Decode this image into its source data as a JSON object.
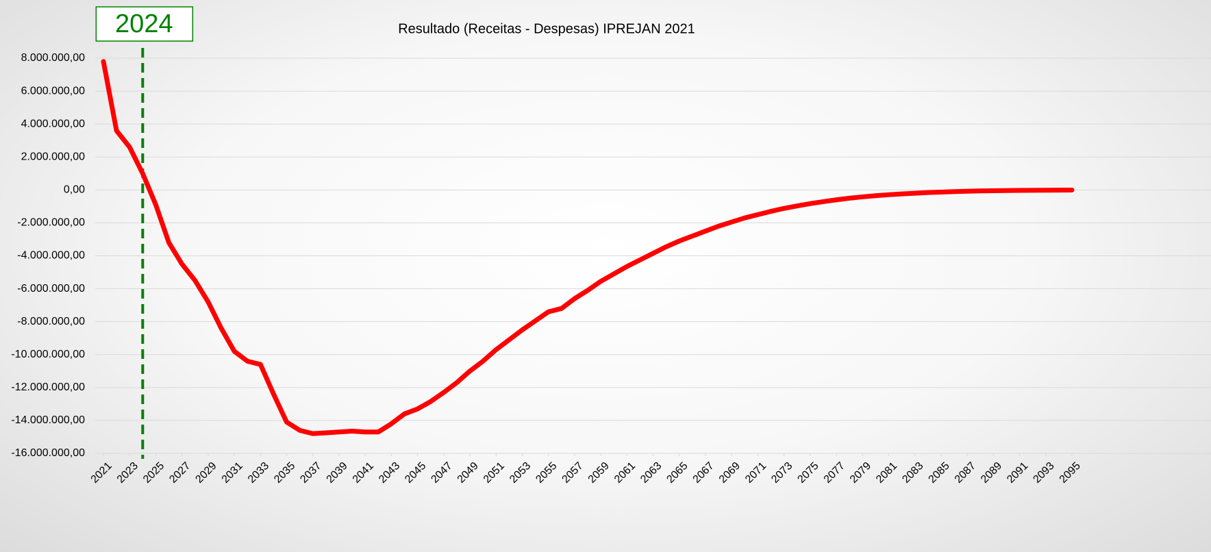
{
  "chart_data": {
    "type": "line",
    "title": "Resultado (Receitas - Despesas) IPREJAN 2021",
    "x": [
      2021,
      2022,
      2023,
      2024,
      2025,
      2026,
      2027,
      2028,
      2029,
      2030,
      2031,
      2032,
      2033,
      2034,
      2035,
      2036,
      2037,
      2038,
      2039,
      2040,
      2041,
      2042,
      2043,
      2044,
      2045,
      2046,
      2047,
      2048,
      2049,
      2050,
      2051,
      2052,
      2053,
      2054,
      2055,
      2056,
      2057,
      2058,
      2059,
      2060,
      2061,
      2062,
      2063,
      2064,
      2065,
      2066,
      2067,
      2068,
      2069,
      2070,
      2071,
      2072,
      2073,
      2074,
      2075,
      2076,
      2077,
      2078,
      2079,
      2080,
      2081,
      2082,
      2083,
      2084,
      2085,
      2086,
      2087,
      2088,
      2089,
      2090,
      2091,
      2092,
      2093,
      2094,
      2095
    ],
    "series": [
      {
        "color": "#ff0000",
        "values": [
          7800000,
          3600000,
          2600000,
          1000000,
          -900000,
          -3200000,
          -4500000,
          -5500000,
          -6800000,
          -8400000,
          -9800000,
          -10400000,
          -10600000,
          -12400000,
          -14100000,
          -14600000,
          -14800000,
          -14750000,
          -14700000,
          -14650000,
          -14700000,
          -14700000,
          -14200000,
          -13600000,
          -13300000,
          -12850000,
          -12300000,
          -11700000,
          -11000000,
          -10400000,
          -9700000,
          -9100000,
          -8500000,
          -7950000,
          -7400000,
          -7200000,
          -6600000,
          -6100000,
          -5550000,
          -5100000,
          -4650000,
          -4250000,
          -3850000,
          -3450000,
          -3100000,
          -2800000,
          -2500000,
          -2200000,
          -1950000,
          -1700000,
          -1500000,
          -1300000,
          -1120000,
          -970000,
          -830000,
          -710000,
          -600000,
          -500000,
          -420000,
          -350000,
          -290000,
          -240000,
          -200000,
          -160000,
          -130000,
          -100000,
          -80000,
          -60000,
          -50000,
          -40000,
          -30000,
          -20000,
          -15000,
          -10000,
          -5000
        ]
      }
    ],
    "xlim": [
      2021,
      2095
    ],
    "xticks": [
      2021,
      2023,
      2025,
      2027,
      2029,
      2031,
      2033,
      2035,
      2037,
      2039,
      2041,
      2043,
      2045,
      2047,
      2049,
      2051,
      2053,
      2055,
      2057,
      2059,
      2061,
      2063,
      2065,
      2067,
      2069,
      2071,
      2073,
      2075,
      2077,
      2079,
      2081,
      2083,
      2085,
      2087,
      2089,
      2091,
      2093,
      2095
    ],
    "ylim": [
      -16000000,
      8000000
    ],
    "yticks": [
      {
        "value": 8000000,
        "label": "8.000.000,00"
      },
      {
        "value": 6000000,
        "label": "6.000.000,00"
      },
      {
        "value": 4000000,
        "label": "4.000.000,00"
      },
      {
        "value": 2000000,
        "label": "2.000.000,00"
      },
      {
        "value": 0,
        "label": "0,00"
      },
      {
        "value": -2000000,
        "label": "-2.000.000,00"
      },
      {
        "value": -4000000,
        "label": "-4.000.000,00"
      },
      {
        "value": -6000000,
        "label": "-6.000.000,00"
      },
      {
        "value": -8000000,
        "label": "-8.000.000,00"
      },
      {
        "value": -10000000,
        "label": "-10.000.000,00"
      },
      {
        "value": -12000000,
        "label": "-12.000.000,00"
      },
      {
        "value": -14000000,
        "label": "-14.000.000,00"
      },
      {
        "value": -16000000,
        "label": "-16.000.000,00"
      }
    ],
    "grid": true,
    "annotations": [
      {
        "text": "2024",
        "x": 2024,
        "color": "#008000"
      }
    ]
  }
}
